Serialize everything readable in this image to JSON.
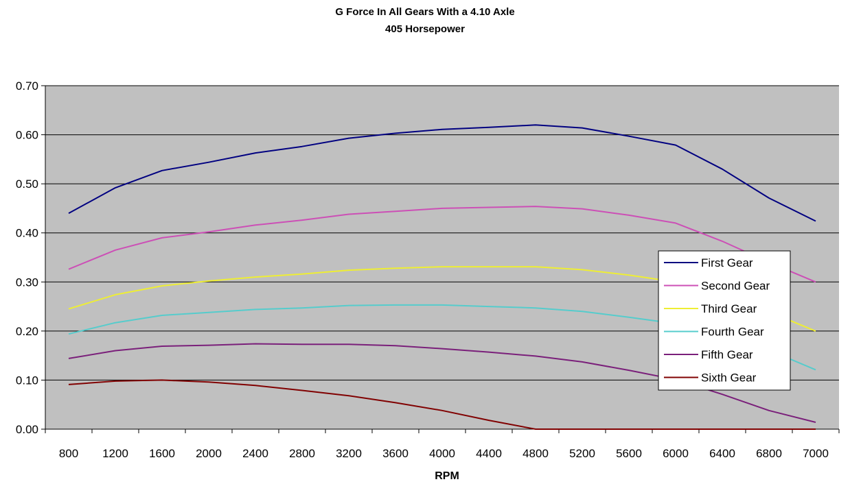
{
  "chart_data": {
    "type": "line",
    "title": "G Force In All Gears With a 4.10 Axle",
    "subtitle": "405 Horsepower",
    "xlabel": "RPM",
    "ylabel": "",
    "categories": [
      "800",
      "1200",
      "1600",
      "2000",
      "2400",
      "2800",
      "3200",
      "3600",
      "4000",
      "4400",
      "4800",
      "5200",
      "5600",
      "6000",
      "6400",
      "6800",
      "7000"
    ],
    "ylim": [
      0,
      0.7
    ],
    "yticks": [
      "0.00",
      "0.10",
      "0.20",
      "0.30",
      "0.40",
      "0.50",
      "0.60",
      "0.70"
    ],
    "grid": "horizontal",
    "plot_background": "#c0c0c0",
    "legend_position": "right",
    "series": [
      {
        "name": "First Gear",
        "color": "#000080",
        "values": [
          0.44,
          0.492,
          0.527,
          0.544,
          0.563,
          0.576,
          0.593,
          0.603,
          0.611,
          0.615,
          0.62,
          0.614,
          0.597,
          0.579,
          0.53,
          0.471,
          0.424
        ]
      },
      {
        "name": "Second Gear",
        "color": "#cc4fb6",
        "values": [
          0.326,
          0.365,
          0.39,
          0.402,
          0.416,
          0.426,
          0.438,
          0.444,
          0.45,
          0.452,
          0.454,
          0.449,
          0.436,
          0.42,
          0.383,
          0.34,
          0.3
        ]
      },
      {
        "name": "Third Gear",
        "color": "#eeee33",
        "values": [
          0.245,
          0.274,
          0.292,
          0.302,
          0.31,
          0.316,
          0.324,
          0.328,
          0.331,
          0.331,
          0.331,
          0.325,
          0.314,
          0.3,
          0.272,
          0.239,
          0.2
        ]
      },
      {
        "name": "Fourth Gear",
        "color": "#55cccc",
        "values": [
          0.194,
          0.217,
          0.232,
          0.238,
          0.244,
          0.247,
          0.252,
          0.253,
          0.253,
          0.25,
          0.247,
          0.24,
          0.228,
          0.215,
          0.191,
          0.161,
          0.121
        ]
      },
      {
        "name": "Fifth Gear",
        "color": "#7a1f7a",
        "values": [
          0.144,
          0.16,
          0.169,
          0.171,
          0.174,
          0.173,
          0.173,
          0.17,
          0.164,
          0.157,
          0.149,
          0.137,
          0.12,
          0.101,
          0.071,
          0.038,
          0.014
        ]
      },
      {
        "name": "Sixth Gear",
        "color": "#800000",
        "values": [
          0.091,
          0.098,
          0.1,
          0.096,
          0.089,
          0.079,
          0.068,
          0.054,
          0.038,
          0.018,
          0,
          0,
          0,
          0,
          0,
          0,
          0
        ]
      }
    ]
  }
}
